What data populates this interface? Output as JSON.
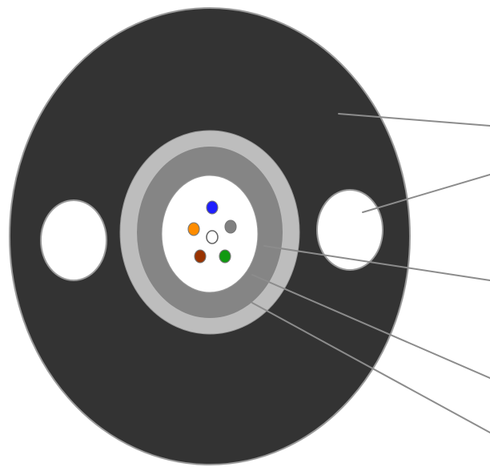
{
  "diagram": {
    "kind": "cable-cross-section",
    "colors": {
      "background": "#ffffff",
      "outer_sheath": "#333333",
      "sheath_outline": "#9a9a9a",
      "outer_tube_ring": "#bdbdbd",
      "inner_tube_ring": "#858585",
      "core": "#ffffff",
      "strength_member_hole": "#ffffff",
      "leader_line": "#8c8c8c"
    },
    "fibers": [
      {
        "id": "fiber-blue",
        "color": "#1f1fff"
      },
      {
        "id": "fiber-orange",
        "color": "#ff8c00"
      },
      {
        "id": "fiber-gray",
        "color": "#808080"
      },
      {
        "id": "fiber-center",
        "color": "#ffffff"
      },
      {
        "id": "fiber-brown",
        "color": "#993300"
      },
      {
        "id": "fiber-green",
        "color": "#119911"
      }
    ],
    "leader_lines": [
      {
        "id": "leader-outer-sheath",
        "target": "outer-sheath"
      },
      {
        "id": "leader-strength-member",
        "target": "strength-member-right"
      },
      {
        "id": "leader-core",
        "target": "core"
      },
      {
        "id": "leader-inner-tube",
        "target": "inner-tube-ring"
      },
      {
        "id": "leader-outer-tube",
        "target": "outer-tube-ring"
      }
    ]
  }
}
